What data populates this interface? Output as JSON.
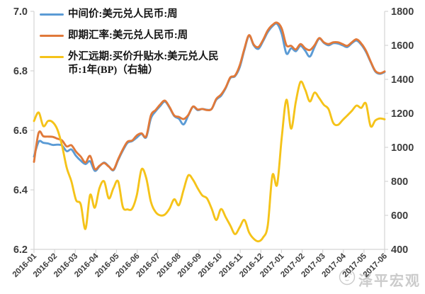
{
  "watermark": {
    "text": "泽平宏观",
    "icon": "zeping-cat-logo",
    "color": "#cbcbcb"
  },
  "chart_data": {
    "type": "line",
    "title": "",
    "grid": false,
    "legend_position": "top-left",
    "background": "#ffffff",
    "axis_line_color": "#d4d4d4",
    "tick_text_color": "#3d3d3d",
    "x_labels": [
      "2016-01",
      "2016-02",
      "2016-03",
      "2016-04",
      "2016-05",
      "2016-06",
      "2016-07",
      "2016-08",
      "2016-09",
      "2016-10",
      "2016-11",
      "2016-12",
      "2017-01",
      "2017-02",
      "2017-03",
      "2017-04",
      "2017-05",
      "2017-06"
    ],
    "left_axis": {
      "min": 6.2,
      "max": 7.0,
      "tick_values": [
        7.0,
        6.8,
        6.6,
        6.4,
        6.2
      ],
      "tick_labels": [
        "7.0",
        "6.8",
        "6.6",
        "6.4",
        "6.2"
      ]
    },
    "right_axis": {
      "min": 400,
      "max": 1800,
      "tick_values": [
        1800,
        1600,
        1400,
        1200,
        1000,
        800,
        600,
        400
      ],
      "tick_labels": [
        "1800",
        "1600",
        "1400",
        "1200",
        "1000",
        "800",
        "600",
        "400"
      ]
    },
    "series": [
      {
        "name": "中间价:美元兑人民币:周",
        "color": "#5B9BD5",
        "axis": "left",
        "values": [
          6.512,
          6.562,
          6.558,
          6.556,
          6.551,
          6.552,
          6.549,
          6.53,
          6.536,
          6.514,
          6.498,
          6.487,
          6.496,
          6.464,
          6.479,
          6.492,
          6.479,
          6.466,
          6.5,
          6.532,
          6.558,
          6.564,
          6.576,
          6.588,
          6.577,
          6.64,
          6.664,
          6.682,
          6.697,
          6.676,
          6.648,
          6.639,
          6.62,
          6.65,
          6.679,
          6.668,
          6.672,
          6.669,
          6.672,
          6.703,
          6.716,
          6.742,
          6.776,
          6.782,
          6.812,
          6.87,
          6.918,
          6.886,
          6.874,
          6.9,
          6.93,
          6.95,
          6.958,
          6.924,
          6.858,
          6.876,
          6.866,
          6.884,
          6.868,
          6.848,
          6.88,
          6.908,
          6.894,
          6.886,
          6.893,
          6.892,
          6.886,
          6.88,
          6.893,
          6.902,
          6.888,
          6.864,
          6.83,
          6.798,
          6.79,
          6.796
        ]
      },
      {
        "name": "即期汇率:美元兑人民币:周",
        "color": "#E0793A",
        "axis": "left",
        "values": [
          6.494,
          6.592,
          6.58,
          6.579,
          6.578,
          6.572,
          6.566,
          6.546,
          6.55,
          6.528,
          6.512,
          6.492,
          6.514,
          6.47,
          6.481,
          6.49,
          6.478,
          6.468,
          6.503,
          6.536,
          6.562,
          6.566,
          6.583,
          6.59,
          6.58,
          6.65,
          6.668,
          6.687,
          6.7,
          6.678,
          6.65,
          6.645,
          6.638,
          6.652,
          6.68,
          6.67,
          6.672,
          6.668,
          6.672,
          6.706,
          6.72,
          6.744,
          6.778,
          6.784,
          6.818,
          6.874,
          6.92,
          6.888,
          6.88,
          6.904,
          6.936,
          6.954,
          6.962,
          6.942,
          6.886,
          6.884,
          6.872,
          6.89,
          6.876,
          6.87,
          6.886,
          6.91,
          6.896,
          6.89,
          6.896,
          6.896,
          6.89,
          6.884,
          6.896,
          6.906,
          6.892,
          6.868,
          6.832,
          6.8,
          6.792,
          6.798
        ]
      },
      {
        "name": "外汇远期:买价升贴水:美元兑人民币:1年(BP)（右轴）",
        "color": "#F5C319",
        "axis": "right",
        "values": [
          1155,
          1205,
          1125,
          1155,
          1148,
          1105,
          1010,
          880,
          800,
          690,
          665,
          520,
          720,
          645,
          760,
          800,
          700,
          760,
          800,
          650,
          635,
          640,
          720,
          870,
          820,
          680,
          620,
          600,
          605,
          640,
          695,
          660,
          750,
          835,
          810,
          760,
          717,
          700,
          640,
          573,
          637,
          590,
          540,
          490,
          530,
          573,
          500,
          462,
          447,
          470,
          540,
          836,
          780,
          1060,
          1280,
          1110,
          1267,
          1385,
          1340,
          1270,
          1322,
          1290,
          1250,
          1225,
          1144,
          1132,
          1160,
          1187,
          1215,
          1246,
          1232,
          1258,
          1125,
          1158,
          1170,
          1165
        ]
      }
    ]
  }
}
